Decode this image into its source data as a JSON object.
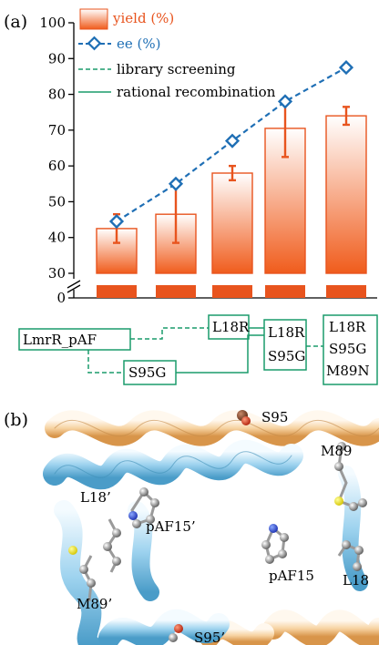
{
  "panel_a_label": "(a)",
  "panel_b_label": "(b)",
  "chart_data": {
    "type": "bar",
    "categories": [
      "LmrR_pAF",
      "S95G",
      "L18R",
      "L18R S95G",
      "L18R S95G M89N"
    ],
    "series": [
      {
        "name": "yield (%)",
        "values": [
          42.5,
          46.5,
          58,
          70.5,
          74
        ],
        "errors": [
          4,
          8,
          2,
          8,
          2.5
        ]
      },
      {
        "name": "ee (%)",
        "values": [
          44.5,
          55,
          67,
          78,
          87.5
        ]
      }
    ],
    "yticks": [
      0,
      30,
      40,
      50,
      60,
      70,
      80,
      90,
      100
    ],
    "ylim": [
      30,
      100
    ],
    "axis_break": true,
    "legend": {
      "yield": "yield (%)",
      "ee": "ee (%)",
      "library": "library screening",
      "rational": "rational recombination",
      "placement": "top-left"
    },
    "colors": {
      "bar": "#e8541e",
      "ee": "#1f6fb5",
      "tree": "#1a9b6b"
    }
  },
  "lineage": {
    "boxes": [
      "LmrR_pAF",
      "L18R",
      "S95G",
      "L18R\nS95G",
      "L18R\nS95G\nM89N"
    ]
  },
  "structure_labels": [
    "S95",
    "M89",
    "L18’",
    "pAF15’",
    "pAF15",
    "L18",
    "M89’",
    "S95’"
  ]
}
